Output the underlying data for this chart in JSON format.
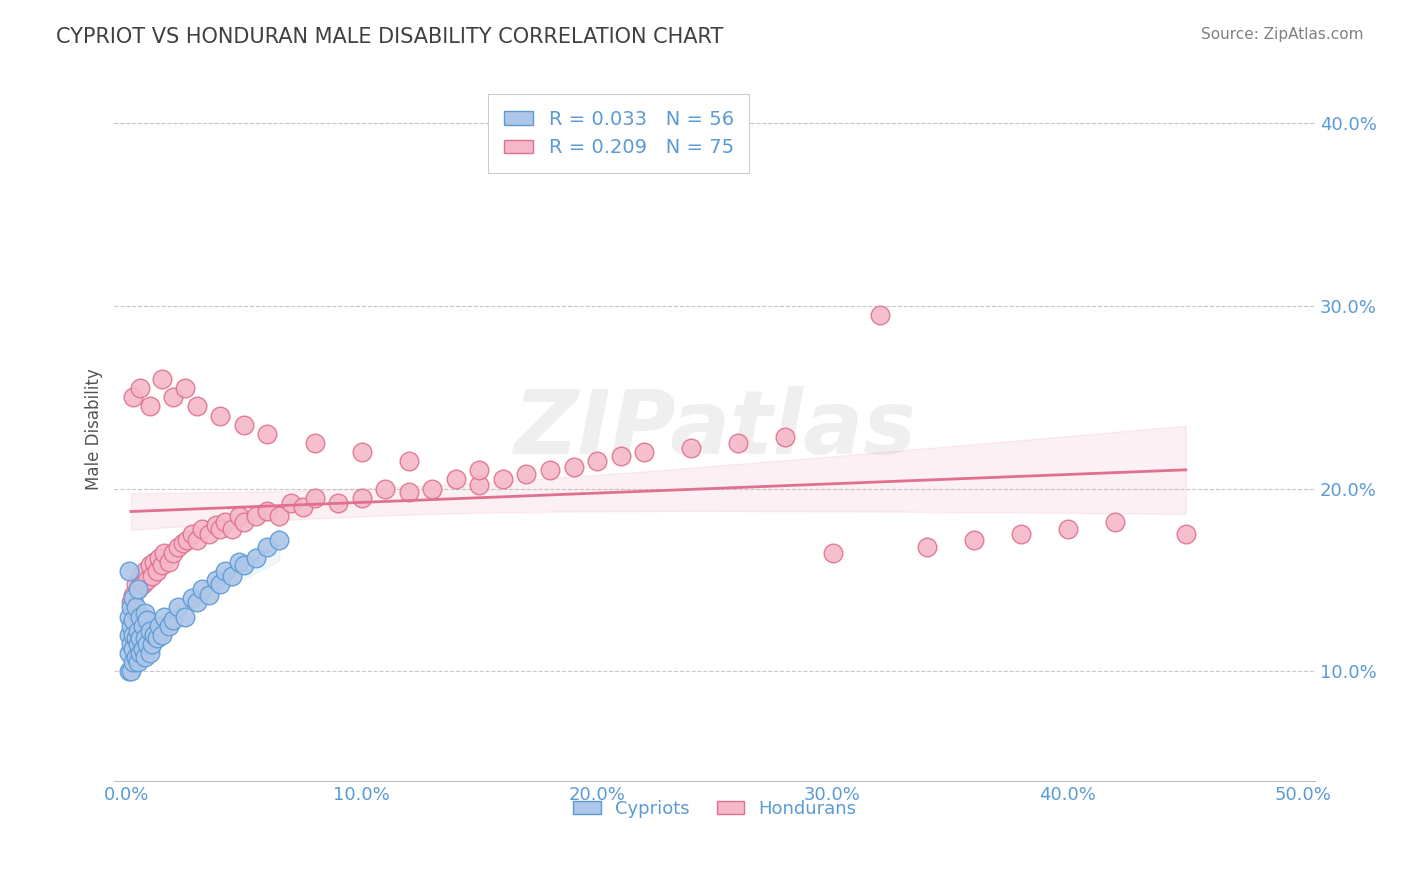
{
  "title": "CYPRIOT VS HONDURAN MALE DISABILITY CORRELATION CHART",
  "source": "Source: ZipAtlas.com",
  "ylabel": "Male Disability",
  "xlim": [
    -0.005,
    0.505
  ],
  "ylim": [
    0.04,
    0.425
  ],
  "xticks": [
    0.0,
    0.1,
    0.2,
    0.3,
    0.4,
    0.5
  ],
  "xtick_labels": [
    "0.0%",
    "10.0%",
    "20.0%",
    "30.0%",
    "40.0%",
    "50.0%"
  ],
  "yticks": [
    0.1,
    0.2,
    0.3,
    0.4
  ],
  "ytick_labels": [
    "10.0%",
    "20.0%",
    "30.0%",
    "40.0%"
  ],
  "legend_entry1": "R = 0.033   N = 56",
  "legend_entry2": "R = 0.209   N = 75",
  "legend_label1": "Cypriots",
  "legend_label2": "Hondurans",
  "cypriot_color": "#aec6e8",
  "honduran_color": "#f4b8c8",
  "cypriot_edge": "#5b9bd5",
  "honduran_edge": "#e07090",
  "trend_cypriot": "#7ab0d8",
  "trend_honduran": "#e07090",
  "background": "#ffffff",
  "title_color": "#404040",
  "axis_color": "#555555",
  "tick_color": "#5b9bd5",
  "grid_color": "#c8c8c8",
  "watermark": "ZIPatlas",
  "cypriot_x": [
    0.001,
    0.001,
    0.001,
    0.001,
    0.001,
    0.002,
    0.002,
    0.002,
    0.002,
    0.003,
    0.003,
    0.003,
    0.003,
    0.003,
    0.004,
    0.004,
    0.004,
    0.005,
    0.005,
    0.005,
    0.005,
    0.006,
    0.006,
    0.006,
    0.007,
    0.007,
    0.008,
    0.008,
    0.008,
    0.009,
    0.009,
    0.01,
    0.01,
    0.011,
    0.012,
    0.013,
    0.014,
    0.015,
    0.016,
    0.018,
    0.02,
    0.022,
    0.025,
    0.028,
    0.03,
    0.032,
    0.035,
    0.038,
    0.04,
    0.042,
    0.045,
    0.048,
    0.05,
    0.055,
    0.06,
    0.065
  ],
  "cypriot_y": [
    0.1,
    0.11,
    0.12,
    0.13,
    0.155,
    0.1,
    0.115,
    0.125,
    0.135,
    0.105,
    0.112,
    0.12,
    0.128,
    0.14,
    0.108,
    0.118,
    0.135,
    0.105,
    0.115,
    0.122,
    0.145,
    0.11,
    0.118,
    0.13,
    0.112,
    0.125,
    0.108,
    0.118,
    0.132,
    0.115,
    0.128,
    0.11,
    0.122,
    0.115,
    0.12,
    0.118,
    0.125,
    0.12,
    0.13,
    0.125,
    0.128,
    0.135,
    0.13,
    0.14,
    0.138,
    0.145,
    0.142,
    0.15,
    0.148,
    0.155,
    0.152,
    0.16,
    0.158,
    0.162,
    0.168,
    0.172
  ],
  "honduran_x": [
    0.002,
    0.003,
    0.004,
    0.005,
    0.006,
    0.007,
    0.008,
    0.009,
    0.01,
    0.011,
    0.012,
    0.013,
    0.014,
    0.015,
    0.016,
    0.018,
    0.02,
    0.022,
    0.024,
    0.026,
    0.028,
    0.03,
    0.032,
    0.035,
    0.038,
    0.04,
    0.042,
    0.045,
    0.048,
    0.05,
    0.055,
    0.06,
    0.065,
    0.07,
    0.075,
    0.08,
    0.09,
    0.1,
    0.11,
    0.12,
    0.13,
    0.14,
    0.15,
    0.16,
    0.17,
    0.18,
    0.19,
    0.2,
    0.21,
    0.22,
    0.24,
    0.26,
    0.28,
    0.3,
    0.32,
    0.34,
    0.36,
    0.38,
    0.4,
    0.42,
    0.003,
    0.006,
    0.01,
    0.015,
    0.02,
    0.025,
    0.03,
    0.04,
    0.05,
    0.06,
    0.08,
    0.1,
    0.12,
    0.15,
    0.45
  ],
  "honduran_y": [
    0.138,
    0.142,
    0.148,
    0.145,
    0.152,
    0.148,
    0.155,
    0.15,
    0.158,
    0.152,
    0.16,
    0.155,
    0.162,
    0.158,
    0.165,
    0.16,
    0.165,
    0.168,
    0.17,
    0.172,
    0.175,
    0.172,
    0.178,
    0.175,
    0.18,
    0.178,
    0.182,
    0.178,
    0.185,
    0.182,
    0.185,
    0.188,
    0.185,
    0.192,
    0.19,
    0.195,
    0.192,
    0.195,
    0.2,
    0.198,
    0.2,
    0.205,
    0.202,
    0.205,
    0.208,
    0.21,
    0.212,
    0.215,
    0.218,
    0.22,
    0.222,
    0.225,
    0.228,
    0.165,
    0.295,
    0.168,
    0.172,
    0.175,
    0.178,
    0.182,
    0.25,
    0.255,
    0.245,
    0.26,
    0.25,
    0.255,
    0.245,
    0.24,
    0.235,
    0.23,
    0.225,
    0.22,
    0.215,
    0.21,
    0.175
  ]
}
